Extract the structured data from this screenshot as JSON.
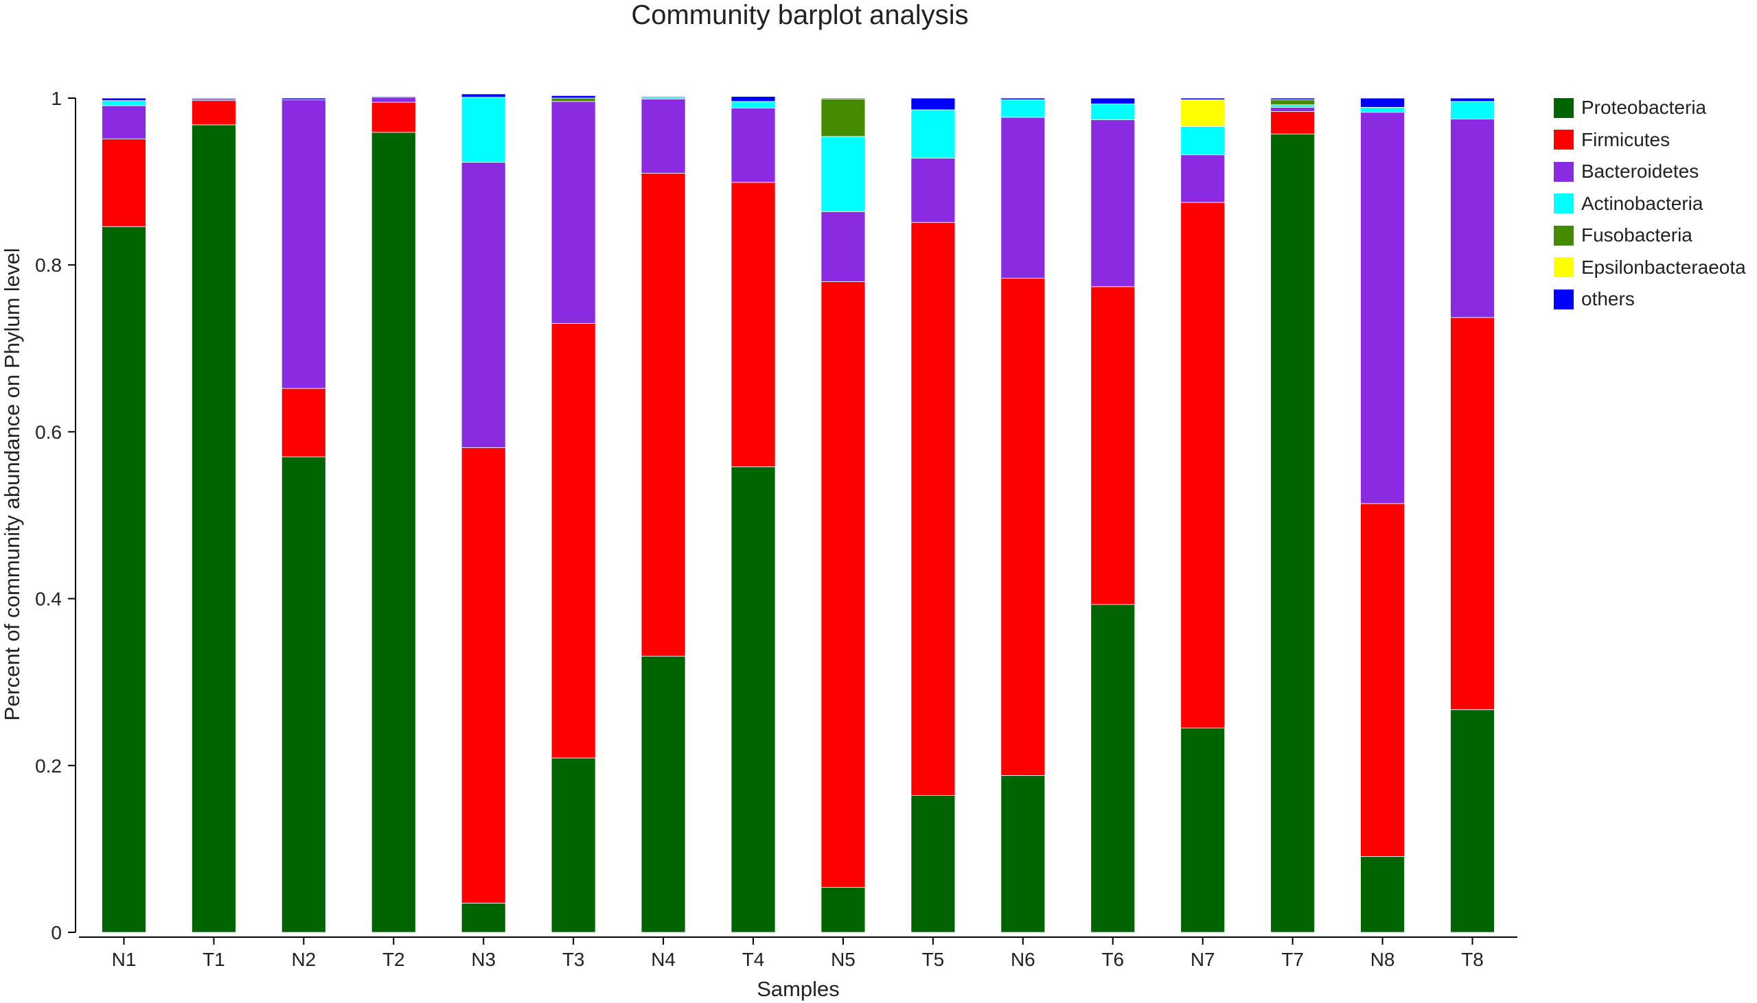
{
  "chart_data": {
    "type": "bar",
    "stacked": true,
    "title": "Community barplot analysis",
    "xlabel": "Samples",
    "ylabel": "Percent of community abundance on Phylum level",
    "ylim": [
      0,
      1
    ],
    "yticks": [
      {
        "value": 0,
        "label": "0"
      },
      {
        "value": 0.2,
        "label": "0.2"
      },
      {
        "value": 0.4,
        "label": "0.4"
      },
      {
        "value": 0.6,
        "label": "0.6"
      },
      {
        "value": 0.8,
        "label": "0.8"
      },
      {
        "value": 1,
        "label": "1"
      }
    ],
    "grid": false,
    "legend_position": "right",
    "categories": [
      "N1",
      "T1",
      "N2",
      "T2",
      "N3",
      "T3",
      "N4",
      "T4",
      "N5",
      "T5",
      "N6",
      "T6",
      "N7",
      "T7",
      "N8",
      "T8"
    ],
    "series": [
      {
        "name": "Proteobacteria",
        "color": "#006400",
        "values": [
          0.846,
          0.968,
          0.57,
          0.959,
          0.035,
          0.209,
          0.331,
          0.558,
          0.054,
          0.164,
          0.188,
          0.393,
          0.245,
          0.957,
          0.091,
          0.267
        ]
      },
      {
        "name": "Firmicutes",
        "color": "#FF0000",
        "values": [
          0.105,
          0.029,
          0.082,
          0.036,
          0.546,
          0.521,
          0.579,
          0.341,
          0.726,
          0.687,
          0.596,
          0.381,
          0.63,
          0.027,
          0.423,
          0.47
        ]
      },
      {
        "name": "Bacteroidetes",
        "color": "#8A2BE2",
        "values": [
          0.04,
          0.002,
          0.346,
          0.006,
          0.342,
          0.266,
          0.089,
          0.089,
          0.084,
          0.077,
          0.193,
          0.2,
          0.057,
          0.005,
          0.469,
          0.238
        ]
      },
      {
        "name": "Actinobacteria",
        "color": "#00FFFF",
        "values": [
          0.006,
          0.0,
          0.0,
          0.0,
          0.078,
          0.0,
          0.002,
          0.008,
          0.09,
          0.058,
          0.021,
          0.019,
          0.034,
          0.003,
          0.006,
          0.021
        ]
      },
      {
        "name": "Fusobacteria",
        "color": "#458B00",
        "values": [
          0.0,
          0.0,
          0.0,
          0.0,
          0.0,
          0.004,
          0.0,
          0.0,
          0.045,
          0.0,
          0.0,
          0.0,
          0.0,
          0.006,
          0.0,
          0.0
        ]
      },
      {
        "name": "Epsilonbacteraeota",
        "color": "#FFFF00",
        "values": [
          0.0,
          0.0,
          0.0,
          0.0,
          0.0,
          0.0,
          0.0,
          0.0,
          0.0,
          0.0,
          0.0,
          0.0,
          0.032,
          0.0,
          0.0,
          0.0
        ]
      },
      {
        "name": "others",
        "color": "#0000FF",
        "values": [
          0.003,
          0.001,
          0.002,
          0.001,
          0.004,
          0.003,
          0.001,
          0.006,
          0.001,
          0.014,
          0.002,
          0.007,
          0.002,
          0.002,
          0.011,
          0.004
        ]
      }
    ]
  }
}
